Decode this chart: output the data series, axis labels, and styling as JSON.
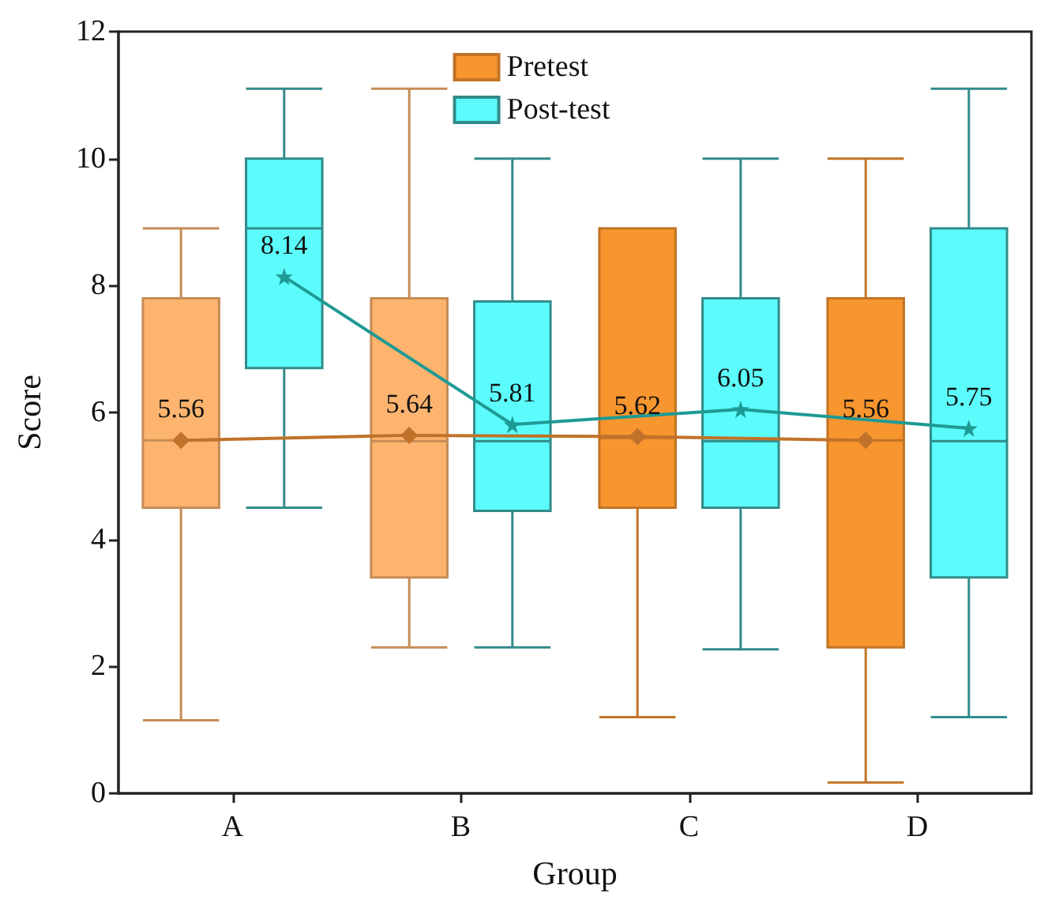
{
  "chart_data": {
    "type": "box",
    "xlabel": "Group",
    "ylabel": "Score",
    "categories": [
      "A",
      "B",
      "C",
      "D"
    ],
    "ylim": [
      0,
      12
    ],
    "yticks": [
      0,
      2,
      4,
      6,
      8,
      10,
      12
    ],
    "grid": false,
    "legend": "top",
    "data_labels": true,
    "series": [
      {
        "name": "Pretest",
        "type": "box",
        "color": "#f7952f",
        "colors": [
          "#fdb46e",
          "#fdb46e",
          "#f7952f",
          "#f7952f"
        ],
        "boxes": [
          {
            "low": 1.15,
            "q1": 4.5,
            "median": 5.56,
            "q3": 7.8,
            "high": 8.9
          },
          {
            "low": 2.3,
            "q1": 3.4,
            "median": 5.55,
            "q3": 7.8,
            "high": 11.1
          },
          {
            "low": 1.2,
            "q1": 4.5,
            "median": 5.6,
            "q3": 8.9,
            "high": 8.9
          },
          {
            "low": 0.17,
            "q1": 2.3,
            "median": 5.56,
            "q3": 7.8,
            "high": 10.0
          }
        ]
      },
      {
        "name": "Post-test",
        "type": "box",
        "color": "#5cfcfc",
        "colors": [
          "#5cfcfc",
          "#5cfcfc",
          "#5cfcfc",
          "#5cfcfc"
        ],
        "boxes": [
          {
            "low": 4.5,
            "q1": 6.7,
            "median": 8.9,
            "q3": 10.0,
            "high": 11.1
          },
          {
            "low": 2.3,
            "q1": 4.45,
            "median": 5.55,
            "q3": 7.75,
            "high": 10.0
          },
          {
            "low": 2.27,
            "q1": 4.5,
            "median": 5.55,
            "q3": 7.8,
            "high": 10.0
          },
          {
            "low": 1.2,
            "q1": 3.4,
            "median": 5.55,
            "q3": 8.9,
            "high": 11.1
          }
        ]
      },
      {
        "type": "line",
        "color": "#c1722a",
        "marker": "diamond",
        "x": [
          "A",
          "B",
          "C",
          "D"
        ],
        "values": [
          5.56,
          5.64,
          5.62,
          5.56
        ]
      },
      {
        "type": "line",
        "color": "#1e9a94",
        "marker": "star",
        "x": [
          "A",
          "B",
          "C",
          "D"
        ],
        "values": [
          8.14,
          5.81,
          6.05,
          5.75
        ]
      }
    ]
  }
}
